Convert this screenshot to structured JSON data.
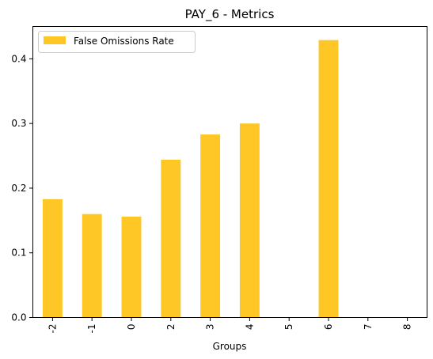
{
  "chart_data": {
    "type": "bar",
    "title": "PAY_6 - Metrics",
    "xlabel": "Groups",
    "ylabel": "",
    "categories": [
      "-2",
      "-1",
      "0",
      "2",
      "3",
      "4",
      "5",
      "6",
      "7",
      "8"
    ],
    "series": [
      {
        "name": "False Omissions Rate",
        "values": [
          0.183,
          0.16,
          0.156,
          0.244,
          0.283,
          0.3,
          0.0,
          0.429,
          0.0,
          0.0
        ]
      }
    ],
    "ylim": [
      0,
      0.45
    ],
    "yticks": [
      0.0,
      0.1,
      0.2,
      0.3,
      0.4
    ],
    "ytick_labels": [
      "0.0",
      "0.1",
      "0.2",
      "0.3",
      "0.4"
    ],
    "grid": false,
    "legend_position": "top-left",
    "colors": {
      "bar": "#FFC726",
      "axis": "#000000",
      "legend_border": "#cccccc"
    }
  }
}
